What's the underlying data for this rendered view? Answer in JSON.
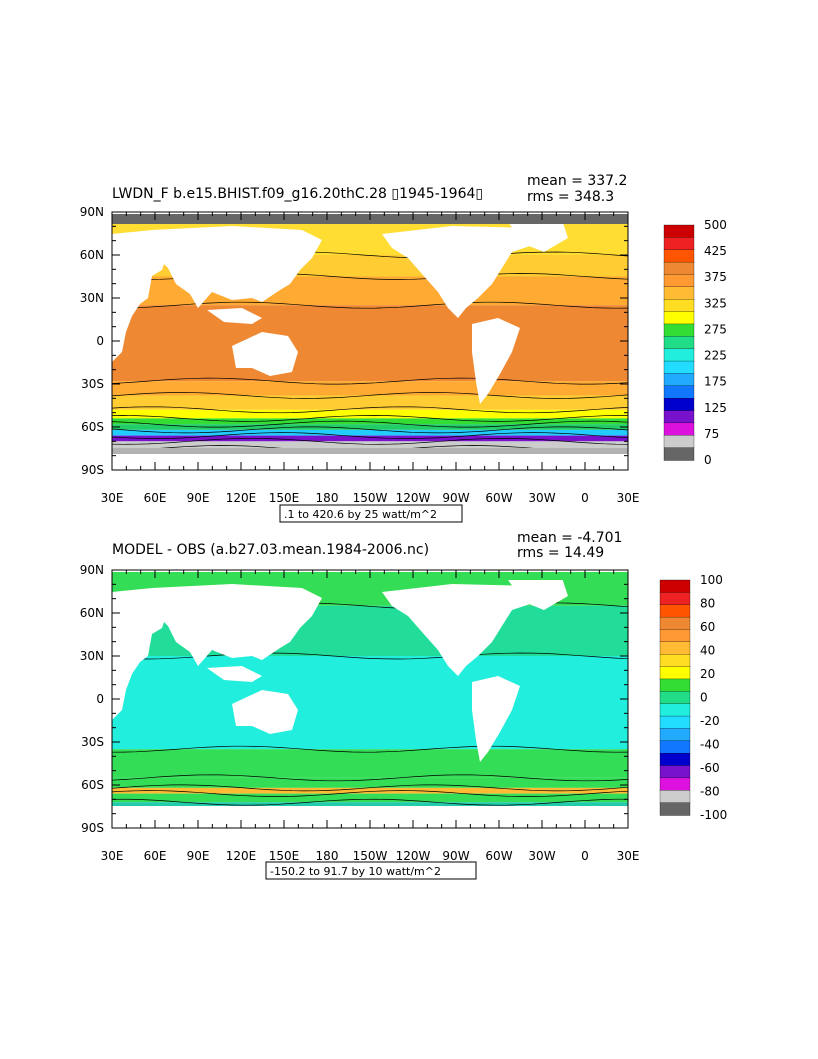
{
  "panels": [
    {
      "title": "LWDN_F b.e15.BHIST.f09_g16.20thC.28 ▯1945-1964▯",
      "mean_text": "mean = 337.2",
      "rms_text": "rms = 348.3",
      "contour_note": ".1 to 420.6 by 25 watt/m^2",
      "lat_labels": [
        "90N",
        "60N",
        "30N",
        "0",
        "30S",
        "60S",
        "90S"
      ],
      "lon_labels": [
        "30E",
        "60E",
        "90E",
        "120E",
        "150E",
        "180",
        "150W",
        "120W",
        "90W",
        "60W",
        "30W",
        "0",
        "30E"
      ],
      "colorbar_labels": [
        "500",
        "425",
        "375",
        "325",
        "275",
        "225",
        "175",
        "125",
        "75",
        "0"
      ],
      "colorbar_colors": [
        "#cc0000",
        "#ee2222",
        "#ff5500",
        "#ee8833",
        "#ff9933",
        "#ffbb33",
        "#ffdd22",
        "#ffff00",
        "#33dd33",
        "#22dd88",
        "#22eedd",
        "#22ddff",
        "#22aaff",
        "#1177ff",
        "#0000cc",
        "#7711cc",
        "#dd11dd",
        "#cccccc",
        "#666666"
      ],
      "bands": [
        {
          "lat": [
            60,
            90
          ],
          "color": "#ffdd33"
        },
        {
          "lat": [
            45,
            60
          ],
          "color": "#ffcc33"
        },
        {
          "lat": [
            25,
            45
          ],
          "color": "#ffaa33"
        },
        {
          "lat": [
            -28,
            25
          ],
          "color": "#ee8833"
        },
        {
          "lat": [
            -38,
            -28
          ],
          "color": "#ffaa33"
        },
        {
          "lat": [
            -48,
            -38
          ],
          "color": "#ffcc33"
        },
        {
          "lat": [
            -54,
            -48
          ],
          "color": "#ffff00"
        },
        {
          "lat": [
            -58,
            -54
          ],
          "color": "#33dd33"
        },
        {
          "lat": [
            -62,
            -58
          ],
          "color": "#22cc66"
        },
        {
          "lat": [
            -66,
            -62
          ],
          "color": "#22ccff"
        },
        {
          "lat": [
            -70,
            -66
          ],
          "color": "#7711cc"
        },
        {
          "lat": [
            -75,
            -70
          ],
          "color": "#cccccc"
        }
      ]
    },
    {
      "title": "MODEL - OBS (a.b27.03.mean.1984-2006.nc)",
      "mean_text": "mean = -4.701",
      "rms_text": "rms = 14.49",
      "contour_note": "-150.2 to 91.7 by 10 watt/m^2",
      "lat_labels": [
        "90N",
        "60N",
        "30N",
        "0",
        "30S",
        "60S",
        "90S"
      ],
      "lon_labels": [
        "30E",
        "60E",
        "90E",
        "120E",
        "150E",
        "180",
        "150W",
        "120W",
        "90W",
        "60W",
        "30W",
        "0",
        "30E"
      ],
      "colorbar_labels": [
        "100",
        "80",
        "60",
        "40",
        "20",
        "0",
        "-20",
        "-40",
        "-60",
        "-80",
        "-100"
      ],
      "colorbar_colors": [
        "#cc0000",
        "#ee2222",
        "#ff5500",
        "#ee8833",
        "#ff9933",
        "#ffbb33",
        "#ffdd22",
        "#ffff00",
        "#33dd33",
        "#22dd88",
        "#22eedd",
        "#22ddff",
        "#22aaff",
        "#1177ff",
        "#0000cc",
        "#7711cc",
        "#dd11dd",
        "#cccccc",
        "#666666"
      ],
      "bands": [
        {
          "lat": [
            65,
            90
          ],
          "color": "#33dd55"
        },
        {
          "lat": [
            30,
            65
          ],
          "color": "#22dd99"
        },
        {
          "lat": [
            -35,
            30
          ],
          "color": "#22eedd"
        },
        {
          "lat": [
            -55,
            -35
          ],
          "color": "#33dd55"
        },
        {
          "lat": [
            -62,
            -55
          ],
          "color": "#33dd55"
        },
        {
          "lat": [
            -66,
            -62
          ],
          "color": "#ffbb33"
        },
        {
          "lat": [
            -72,
            -66
          ],
          "color": "#33dd55"
        },
        {
          "lat": [
            -78,
            -72
          ],
          "color": "#22ccaa"
        }
      ]
    }
  ]
}
